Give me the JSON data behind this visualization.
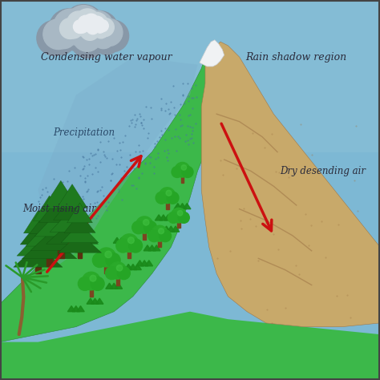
{
  "bg_sky": "#7db8d4",
  "mountain_green": "#3cb84a",
  "mountain_brown": "#c8a96a",
  "mountain_brown_dark": "#a07848",
  "snow_color": "#f0f2f4",
  "cloud_dark": "#909aaa",
  "cloud_mid": "#b8c4cc",
  "cloud_light": "#d8e0e6",
  "cloud_white": "#eef2f5",
  "rain_color": "#6090b8",
  "arrow_color": "#cc1111",
  "text_color": "#2a2a3a",
  "tree_green_dark": "#1a7a1a",
  "tree_green_mid": "#2aaa2a",
  "tree_trunk": "#7a4a1a",
  "pine_green": "#1a6a1a",
  "grass_green": "#1a8a1a",
  "title_condensing": "Condensing water vapour",
  "title_precipitation": "Precipitation",
  "title_moist": "Moist rising air",
  "title_rain_shadow": "Rain shadow region",
  "title_dry": "Dry desending air"
}
